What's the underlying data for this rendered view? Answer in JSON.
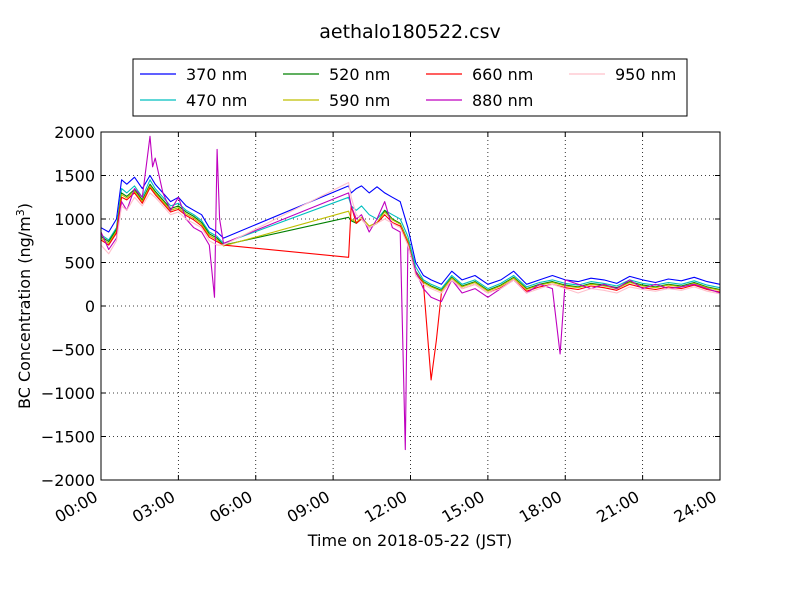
{
  "chart_data": {
    "type": "line",
    "title": "aethalo180522.csv",
    "xlabel": "Time on 2018-05-22 (JST)",
    "ylabel_text": "BC Concentration (ng/m",
    "ylabel_sup": "3",
    "ylabel_close": ")",
    "xlim_hours": [
      0,
      24
    ],
    "ylim": [
      -2000,
      2000
    ],
    "x_ticks": [
      {
        "value": 0,
        "label": "00:00"
      },
      {
        "value": 3,
        "label": "03:00"
      },
      {
        "value": 6,
        "label": "06:00"
      },
      {
        "value": 9,
        "label": "09:00"
      },
      {
        "value": 12,
        "label": "12:00"
      },
      {
        "value": 15,
        "label": "15:00"
      },
      {
        "value": 18,
        "label": "18:00"
      },
      {
        "value": 21,
        "label": "21:00"
      },
      {
        "value": 24,
        "label": "24:00"
      }
    ],
    "y_ticks": [
      {
        "value": 2000,
        "label": "2000"
      },
      {
        "value": 1500,
        "label": "1500"
      },
      {
        "value": 1000,
        "label": "1000"
      },
      {
        "value": 500,
        "label": "500"
      },
      {
        "value": 0,
        "label": "0"
      },
      {
        "value": -500,
        "label": "−500"
      },
      {
        "value": -1000,
        "label": "−1000"
      },
      {
        "value": -1500,
        "label": "−1500"
      },
      {
        "value": -2000,
        "label": "−2000"
      }
    ],
    "grid": true,
    "legend_placement": "top-center",
    "series": [
      {
        "name": "370 nm",
        "color": "#0000ff",
        "x": [
          0.0,
          0.3,
          0.6,
          0.8,
          1.0,
          1.3,
          1.6,
          1.9,
          2.1,
          2.4,
          2.7,
          3.0,
          3.3,
          3.6,
          3.9,
          4.2,
          4.5,
          4.75,
          9.6,
          9.7,
          9.9,
          10.1,
          10.4,
          10.7,
          11.0,
          11.3,
          11.6,
          11.9,
          12.2,
          12.5,
          12.8,
          13.2,
          13.6,
          14.0,
          14.5,
          15.0,
          15.5,
          16.0,
          16.5,
          17.0,
          17.5,
          18.0,
          18.5,
          19.0,
          19.5,
          20.0,
          20.5,
          21.0,
          21.5,
          22.0,
          22.5,
          23.0,
          23.5,
          24.0
        ],
        "y": [
          900,
          850,
          1000,
          1450,
          1400,
          1480,
          1350,
          1500,
          1400,
          1300,
          1200,
          1250,
          1150,
          1100,
          1050,
          900,
          850,
          780,
          1380,
          1300,
          1350,
          1380,
          1300,
          1370,
          1300,
          1250,
          1200,
          900,
          500,
          350,
          300,
          250,
          400,
          300,
          350,
          250,
          300,
          400,
          250,
          300,
          350,
          300,
          280,
          320,
          300,
          260,
          340,
          300,
          270,
          310,
          290,
          330,
          280,
          250
        ]
      },
      {
        "name": "470 nm",
        "color": "#00bfbf",
        "x": [
          0.0,
          0.3,
          0.6,
          0.8,
          1.0,
          1.3,
          1.6,
          1.9,
          2.1,
          2.4,
          2.7,
          3.0,
          3.3,
          3.6,
          3.9,
          4.2,
          4.5,
          4.75,
          9.6,
          9.7,
          9.9,
          10.1,
          10.4,
          10.7,
          11.0,
          11.3,
          11.6,
          11.9,
          12.2,
          12.5,
          12.8,
          13.2,
          13.6,
          14.0,
          14.5,
          15.0,
          15.5,
          16.0,
          16.5,
          17.0,
          17.5,
          18.0,
          18.5,
          19.0,
          19.5,
          20.0,
          20.5,
          21.0,
          21.5,
          22.0,
          22.5,
          23.0,
          23.5,
          24.0
        ],
        "y": [
          820,
          760,
          900,
          1350,
          1300,
          1380,
          1250,
          1450,
          1350,
          1250,
          1150,
          1180,
          1100,
          1050,
          980,
          850,
          800,
          720,
          1250,
          1150,
          1100,
          1150,
          1050,
          1000,
          1100,
          1050,
          1000,
          800,
          450,
          300,
          250,
          200,
          350,
          250,
          300,
          200,
          260,
          350,
          220,
          270,
          300,
          260,
          240,
          280,
          260,
          230,
          300,
          260,
          240,
          270,
          250,
          290,
          240,
          210
        ]
      },
      {
        "name": "520 nm",
        "color": "#008000",
        "x": [
          0.0,
          0.3,
          0.6,
          0.8,
          1.0,
          1.3,
          1.6,
          1.9,
          2.1,
          2.4,
          2.7,
          3.0,
          3.3,
          3.6,
          3.9,
          4.2,
          4.5,
          4.75,
          9.6,
          9.7,
          9.9,
          10.1,
          10.4,
          10.7,
          11.0,
          11.3,
          11.6,
          11.9,
          12.2,
          12.5,
          12.8,
          13.2,
          13.6,
          14.0,
          14.5,
          15.0,
          15.5,
          16.0,
          16.5,
          17.0,
          17.5,
          18.0,
          18.5,
          19.0,
          19.5,
          20.0,
          20.5,
          21.0,
          21.5,
          22.0,
          22.5,
          23.0,
          23.5,
          24.0
        ],
        "y": [
          800,
          740,
          880,
          1300,
          1260,
          1340,
          1220,
          1400,
          1320,
          1220,
          1120,
          1150,
          1080,
          1030,
          960,
          830,
          780,
          700,
          1020,
          980,
          950,
          1000,
          900,
          950,
          1100,
          1000,
          950,
          750,
          400,
          280,
          230,
          180,
          330,
          230,
          280,
          180,
          240,
          330,
          200,
          250,
          280,
          240,
          220,
          260,
          240,
          210,
          280,
          240,
          220,
          250,
          230,
          270,
          220,
          190
        ]
      },
      {
        "name": "590 nm",
        "color": "#bfbf00",
        "x": [
          0.0,
          0.3,
          0.6,
          0.8,
          1.0,
          1.3,
          1.6,
          1.9,
          2.1,
          2.4,
          2.7,
          3.0,
          3.3,
          3.6,
          3.9,
          4.2,
          4.5,
          4.75,
          9.6,
          9.7,
          9.9,
          10.1,
          10.4,
          10.7,
          11.0,
          11.3,
          11.6,
          11.9,
          12.2,
          12.5,
          12.8,
          13.2,
          13.6,
          14.0,
          14.5,
          15.0,
          15.5,
          16.0,
          16.5,
          17.0,
          17.5,
          18.0,
          18.5,
          19.0,
          19.5,
          20.0,
          20.5,
          21.0,
          21.5,
          22.0,
          22.5,
          23.0,
          23.5,
          24.0
        ],
        "y": [
          780,
          720,
          860,
          1280,
          1240,
          1320,
          1200,
          1380,
          1300,
          1200,
          1100,
          1130,
          1060,
          1010,
          940,
          810,
          760,
          690,
          1090,
          1000,
          960,
          1020,
          920,
          960,
          1080,
          990,
          940,
          740,
          390,
          270,
          220,
          170,
          320,
          220,
          270,
          170,
          230,
          320,
          190,
          240,
          270,
          230,
          210,
          250,
          230,
          200,
          270,
          230,
          210,
          240,
          220,
          260,
          210,
          180
        ]
      },
      {
        "name": "660 nm",
        "color": "#ff0000",
        "x": [
          0.0,
          0.3,
          0.6,
          0.8,
          1.0,
          1.3,
          1.6,
          1.9,
          2.1,
          2.4,
          2.7,
          3.0,
          3.3,
          3.6,
          3.9,
          4.2,
          4.5,
          4.75,
          9.6,
          9.7,
          9.9,
          10.1,
          10.4,
          10.7,
          11.0,
          11.3,
          11.6,
          11.9,
          12.2,
          12.5,
          12.8,
          13.0,
          13.2,
          13.6,
          14.0,
          14.5,
          15.0,
          15.5,
          16.0,
          16.5,
          17.0,
          17.5,
          18.0,
          18.5,
          19.0,
          19.5,
          20.0,
          20.5,
          21.0,
          21.5,
          22.0,
          22.5,
          23.0,
          23.5,
          24.0
        ],
        "y": [
          760,
          700,
          840,
          1250,
          1220,
          1300,
          1180,
          1360,
          1280,
          1180,
          1080,
          1110,
          1040,
          990,
          920,
          790,
          740,
          700,
          560,
          1150,
          950,
          1000,
          900,
          950,
          1050,
          960,
          920,
          720,
          380,
          260,
          -850,
          -400,
          150,
          300,
          200,
          250,
          150,
          210,
          300,
          170,
          220,
          250,
          210,
          190,
          230,
          210,
          180,
          250,
          210,
          190,
          220,
          200,
          240,
          190,
          160
        ]
      },
      {
        "name": "880 nm",
        "color": "#bf00bf",
        "x": [
          0.0,
          0.3,
          0.6,
          0.8,
          1.0,
          1.3,
          1.6,
          1.9,
          2.0,
          2.1,
          2.4,
          2.7,
          3.0,
          3.3,
          3.6,
          3.9,
          4.2,
          4.4,
          4.5,
          4.6,
          4.75,
          9.6,
          9.7,
          9.9,
          10.1,
          10.4,
          10.7,
          11.0,
          11.3,
          11.6,
          11.8,
          11.9,
          12.2,
          12.5,
          12.8,
          13.2,
          13.6,
          14.0,
          14.5,
          15.0,
          15.5,
          16.0,
          16.5,
          17.0,
          17.5,
          17.8,
          18.0,
          18.5,
          19.0,
          19.5,
          20.0,
          20.5,
          21.0,
          21.5,
          22.0,
          22.5,
          23.0,
          23.5,
          24.0
        ],
        "y": [
          850,
          650,
          780,
          1200,
          1100,
          1350,
          1250,
          1950,
          1600,
          1700,
          1300,
          1100,
          1250,
          1000,
          900,
          850,
          700,
          100,
          1800,
          1000,
          720,
          1300,
          1150,
          1000,
          1050,
          850,
          1000,
          1200,
          900,
          850,
          -1650,
          700,
          400,
          200,
          100,
          50,
          300,
          150,
          200,
          100,
          200,
          300,
          150,
          250,
          200,
          -550,
          300,
          250,
          200,
          250,
          200,
          300,
          200,
          250,
          200,
          220,
          250,
          200,
          150
        ]
      },
      {
        "name": "950 nm",
        "color": "#ffc0cb",
        "x": [
          0.0,
          0.3,
          0.6,
          0.8,
          1.0,
          1.3,
          1.6,
          1.9,
          2.1,
          2.4,
          2.7,
          3.0,
          3.3,
          3.6,
          3.9,
          4.2,
          4.5,
          4.75,
          9.6,
          9.7,
          9.9,
          10.1,
          10.4,
          10.7,
          11.0,
          11.3,
          11.6,
          11.9,
          12.2,
          12.5,
          12.8,
          13.2,
          13.6,
          14.0,
          14.5,
          15.0,
          15.5,
          16.0,
          16.5,
          17.0,
          17.5,
          18.0,
          18.5,
          19.0,
          19.5,
          20.0,
          20.5,
          21.0,
          21.5,
          22.0,
          22.5,
          23.0,
          23.5,
          24.0
        ],
        "y": [
          700,
          600,
          750,
          1150,
          1100,
          1250,
          1150,
          1300,
          1250,
          1150,
          1050,
          1080,
          1000,
          950,
          900,
          750,
          700,
          700,
          1420,
          1250,
          1050,
          1000,
          900,
          950,
          1000,
          950,
          900,
          700,
          350,
          250,
          200,
          150,
          300,
          200,
          250,
          150,
          200,
          300,
          150,
          200,
          250,
          200,
          150,
          200,
          180,
          150,
          220,
          190,
          170,
          200,
          180,
          220,
          170,
          140
        ]
      }
    ]
  }
}
